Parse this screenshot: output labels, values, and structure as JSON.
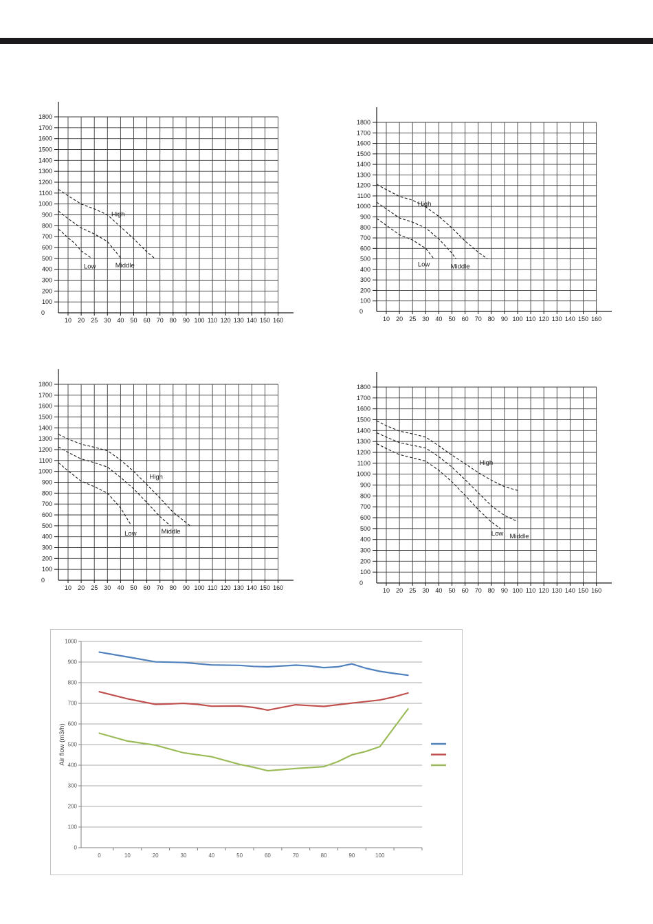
{
  "page": {
    "background": "#ffffff",
    "top_bar_color": "#1c191c"
  },
  "chart_data": [
    {
      "id": "fan-chart-top-left",
      "type": "line",
      "title": "",
      "curve_style": "dashed",
      "curve_color": "#1a1a1a",
      "grid": true,
      "xlim": [
        0,
        160
      ],
      "ylim": [
        0,
        1800
      ],
      "x_tick_labels": [
        10,
        20,
        25,
        30,
        40,
        50,
        60,
        70,
        80,
        90,
        100,
        110,
        120,
        130,
        140,
        150,
        160
      ],
      "y_tick_labels": [
        0,
        100,
        200,
        300,
        400,
        500,
        600,
        700,
        800,
        900,
        1000,
        1100,
        1200,
        1300,
        1400,
        1500,
        1600,
        1700,
        1800
      ],
      "series": [
        {
          "name": "High",
          "label": "High",
          "label_at": [
            33,
            905
          ],
          "points": [
            [
              0,
              1135
            ],
            [
              10,
              1075
            ],
            [
              20,
              1000
            ],
            [
              25,
              955
            ],
            [
              30,
              900
            ],
            [
              40,
              790
            ],
            [
              50,
              680
            ],
            [
              60,
              560
            ],
            [
              66,
              500
            ]
          ]
        },
        {
          "name": "Middle",
          "label": "Middle",
          "label_at": [
            36,
            435
          ],
          "points": [
            [
              0,
              935
            ],
            [
              10,
              865
            ],
            [
              20,
              780
            ],
            [
              25,
              725
            ],
            [
              30,
              655
            ],
            [
              35,
              580
            ],
            [
              40,
              505
            ]
          ]
        },
        {
          "name": "Low",
          "label": "Low",
          "label_at": [
            21,
            425
          ],
          "points": [
            [
              0,
              770
            ],
            [
              10,
              690
            ],
            [
              15,
              640
            ],
            [
              20,
              570
            ],
            [
              24,
              500
            ]
          ]
        }
      ]
    },
    {
      "id": "fan-chart-top-right",
      "type": "line",
      "title": "",
      "curve_style": "dashed",
      "curve_color": "#1a1a1a",
      "grid": true,
      "xlim": [
        0,
        160
      ],
      "ylim": [
        0,
        1800
      ],
      "x_tick_labels": [
        10,
        20,
        25,
        30,
        40,
        50,
        60,
        70,
        80,
        90,
        100,
        110,
        120,
        130,
        140,
        150,
        160
      ],
      "y_tick_labels": [
        0,
        100,
        200,
        300,
        400,
        500,
        600,
        700,
        800,
        900,
        1000,
        1100,
        1200,
        1300,
        1400,
        1500,
        1600,
        1700,
        1800
      ],
      "series": [
        {
          "name": "High",
          "label": "High",
          "label_at": [
            27,
            1025
          ],
          "points": [
            [
              0,
              1210
            ],
            [
              10,
              1160
            ],
            [
              20,
              1095
            ],
            [
              25,
              1060
            ],
            [
              30,
              995
            ],
            [
              40,
              905
            ],
            [
              50,
              795
            ],
            [
              60,
              670
            ],
            [
              70,
              565
            ],
            [
              77,
              500
            ]
          ]
        },
        {
          "name": "Middle",
          "label": "Middle",
          "label_at": [
            49,
            430
          ],
          "points": [
            [
              0,
              1040
            ],
            [
              10,
              975
            ],
            [
              20,
              890
            ],
            [
              25,
              850
            ],
            [
              30,
              795
            ],
            [
              40,
              690
            ],
            [
              50,
              555
            ],
            [
              53,
              500
            ]
          ]
        },
        {
          "name": "Low",
          "label": "Low",
          "label_at": [
            27,
            450
          ],
          "points": [
            [
              0,
              885
            ],
            [
              10,
              820
            ],
            [
              20,
              730
            ],
            [
              25,
              680
            ],
            [
              30,
              600
            ],
            [
              36,
              505
            ]
          ]
        }
      ]
    },
    {
      "id": "fan-chart-mid-left",
      "type": "line",
      "title": "",
      "curve_style": "dashed",
      "curve_color": "#1a1a1a",
      "grid": true,
      "xlim": [
        0,
        160
      ],
      "ylim": [
        0,
        1800
      ],
      "x_tick_labels": [
        10,
        20,
        25,
        30,
        40,
        50,
        60,
        70,
        80,
        90,
        100,
        110,
        120,
        130,
        140,
        150,
        160
      ],
      "y_tick_labels": [
        0,
        100,
        200,
        300,
        400,
        500,
        600,
        700,
        800,
        900,
        1000,
        1100,
        1200,
        1300,
        1400,
        1500,
        1600,
        1700,
        1800
      ],
      "series": [
        {
          "name": "High",
          "label": "High",
          "label_at": [
            62,
            950
          ],
          "points": [
            [
              0,
              1340
            ],
            [
              10,
              1298
            ],
            [
              20,
              1250
            ],
            [
              25,
              1222
            ],
            [
              30,
              1190
            ],
            [
              40,
              1105
            ],
            [
              50,
              1000
            ],
            [
              60,
              880
            ],
            [
              70,
              755
            ],
            [
              80,
              625
            ],
            [
              93,
              500
            ]
          ]
        },
        {
          "name": "Middle",
          "label": "Middle",
          "label_at": [
            71,
            450
          ],
          "points": [
            [
              0,
              1225
            ],
            [
              10,
              1175
            ],
            [
              20,
              1115
            ],
            [
              25,
              1080
            ],
            [
              30,
              1040
            ],
            [
              40,
              945
            ],
            [
              50,
              840
            ],
            [
              60,
              715
            ],
            [
              70,
              585
            ],
            [
              78,
              500
            ]
          ]
        },
        {
          "name": "Low",
          "label": "Low",
          "label_at": [
            43,
            430
          ],
          "points": [
            [
              0,
              1080
            ],
            [
              10,
              1005
            ],
            [
              20,
              910
            ],
            [
              25,
              860
            ],
            [
              30,
              800
            ],
            [
              40,
              665
            ],
            [
              48,
              505
            ]
          ]
        }
      ]
    },
    {
      "id": "fan-chart-mid-right",
      "type": "line",
      "title": "",
      "curve_style": "dashed",
      "curve_color": "#1a1a1a",
      "grid": true,
      "xlim": [
        0,
        160
      ],
      "ylim": [
        0,
        1800
      ],
      "x_tick_labels": [
        10,
        20,
        25,
        30,
        40,
        50,
        60,
        70,
        80,
        90,
        100,
        110,
        120,
        130,
        140,
        150,
        160
      ],
      "y_tick_labels": [
        0,
        100,
        200,
        300,
        400,
        500,
        600,
        700,
        800,
        900,
        1000,
        1100,
        1200,
        1300,
        1400,
        1500,
        1600,
        1700,
        1800
      ],
      "series": [
        {
          "name": "High",
          "label": "High",
          "label_at": [
            71,
            1105
          ],
          "points": [
            [
              0,
              1490
            ],
            [
              10,
              1445
            ],
            [
              20,
              1395
            ],
            [
              25,
              1370
            ],
            [
              30,
              1340
            ],
            [
              40,
              1260
            ],
            [
              50,
              1175
            ],
            [
              60,
              1095
            ],
            [
              70,
              1015
            ],
            [
              80,
              945
            ],
            [
              90,
              885
            ],
            [
              100,
              850
            ]
          ]
        },
        {
          "name": "Middle",
          "label": "Middle",
          "label_at": [
            94,
            428
          ],
          "points": [
            [
              0,
              1380
            ],
            [
              10,
              1340
            ],
            [
              20,
              1290
            ],
            [
              30,
              1240
            ],
            [
              40,
              1160
            ],
            [
              50,
              1065
            ],
            [
              60,
              950
            ],
            [
              70,
              830
            ],
            [
              80,
              710
            ],
            [
              90,
              620
            ],
            [
              100,
              565
            ]
          ]
        },
        {
          "name": "Low",
          "label": "Low",
          "label_at": [
            80,
            455
          ],
          "points": [
            [
              0,
              1280
            ],
            [
              10,
              1235
            ],
            [
              20,
              1180
            ],
            [
              30,
              1120
            ],
            [
              40,
              1035
            ],
            [
              50,
              930
            ],
            [
              60,
              805
            ],
            [
              70,
              675
            ],
            [
              80,
              560
            ],
            [
              87,
              500
            ]
          ]
        }
      ]
    },
    {
      "id": "air-flow-line-chart",
      "type": "line",
      "title": "",
      "ylabel": "Air flow (m3/h)",
      "grid": true,
      "ylim": [
        0,
        1000
      ],
      "x_tick_labels": [
        0,
        10,
        20,
        30,
        40,
        50,
        60,
        70,
        80,
        90,
        100
      ],
      "y_tick_labels": [
        0,
        100,
        200,
        300,
        400,
        500,
        600,
        700,
        800,
        900,
        1000
      ],
      "legend": {
        "position": "right",
        "entries": [
          {
            "swatch_color": "#4F81BD"
          },
          {
            "swatch_color": "#C0504D"
          },
          {
            "swatch_color": "#9BBB59"
          }
        ]
      },
      "series": [
        {
          "name": "series-blue",
          "color": "#4F81BD",
          "points": [
            [
              0,
              948
            ],
            [
              10,
              925
            ],
            [
              20,
              901
            ],
            [
              30,
              898
            ],
            [
              40,
              886
            ],
            [
              50,
              884
            ],
            [
              55,
              879
            ],
            [
              60,
              877
            ],
            [
              70,
              885
            ],
            [
              75,
              881
            ],
            [
              80,
              873
            ],
            [
              85,
              877
            ],
            [
              90,
              891
            ],
            [
              95,
              870
            ],
            [
              100,
              855
            ],
            [
              105,
              845
            ],
            [
              110,
              836
            ]
          ]
        },
        {
          "name": "series-red",
          "color": "#C0504D",
          "points": [
            [
              0,
              756
            ],
            [
              10,
              722
            ],
            [
              20,
              695
            ],
            [
              25,
              697
            ],
            [
              30,
              700
            ],
            [
              35,
              695
            ],
            [
              40,
              686
            ],
            [
              50,
              687
            ],
            [
              55,
              680
            ],
            [
              60,
              667
            ],
            [
              70,
              693
            ],
            [
              75,
              689
            ],
            [
              80,
              685
            ],
            [
              90,
              701
            ],
            [
              100,
              716
            ],
            [
              105,
              731
            ],
            [
              110,
              750
            ]
          ]
        },
        {
          "name": "series-green",
          "color": "#9BBB59",
          "points": [
            [
              0,
              555
            ],
            [
              10,
              517
            ],
            [
              20,
              497
            ],
            [
              30,
              460
            ],
            [
              40,
              441
            ],
            [
              50,
              404
            ],
            [
              55,
              390
            ],
            [
              60,
              373
            ],
            [
              70,
              384
            ],
            [
              80,
              393
            ],
            [
              85,
              417
            ],
            [
              90,
              450
            ],
            [
              95,
              467
            ],
            [
              100,
              490
            ],
            [
              110,
              673
            ]
          ]
        }
      ]
    }
  ]
}
